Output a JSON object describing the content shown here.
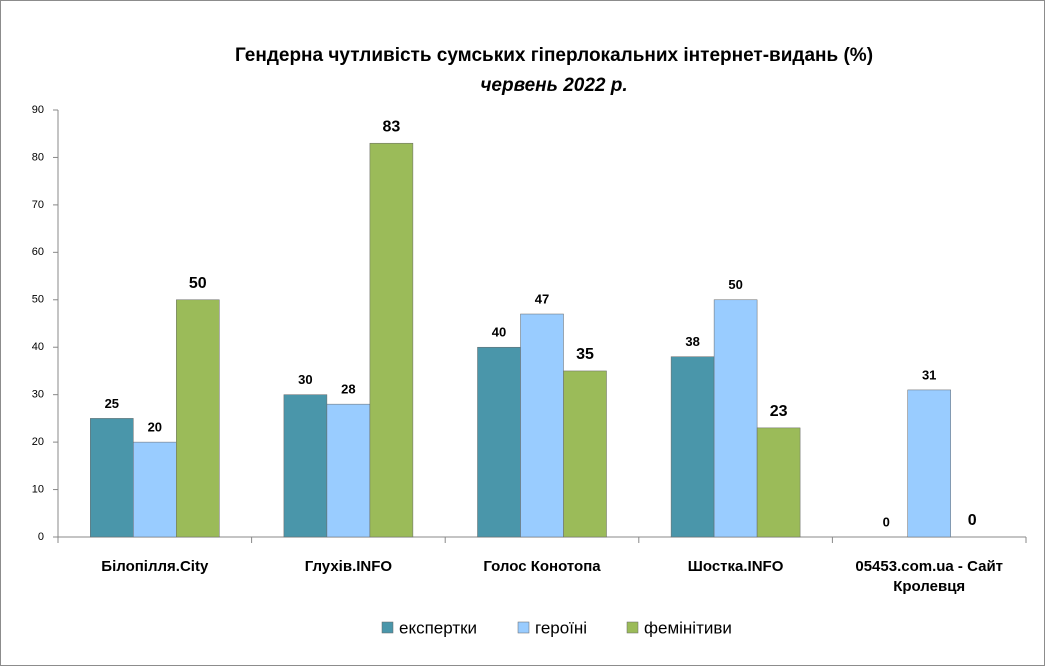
{
  "chart_data": {
    "type": "bar",
    "title": "Гендерна чутливість сумських гіперлокальних інтернет-видань (%)",
    "subtitle": "червень 2022 р.",
    "categories": [
      "Білопілля.City",
      "Глухів.INFO",
      "Голос Конотопа",
      "Шостка.INFO",
      "05453.com.ua - Сайт Кролевця"
    ],
    "series": [
      {
        "name": "експертки",
        "color": "#4a96aa",
        "values": [
          25,
          30,
          40,
          38,
          0
        ]
      },
      {
        "name": "героїні",
        "color": "#99ccff",
        "values": [
          20,
          28,
          47,
          50,
          31
        ]
      },
      {
        "name": "фемінітиви",
        "color": "#9bbb59",
        "values": [
          50,
          83,
          35,
          23,
          0
        ]
      }
    ],
    "ylim": [
      0,
      90
    ],
    "yticks": [
      0,
      10,
      20,
      30,
      40,
      50,
      60,
      70,
      80,
      90
    ],
    "grid": false,
    "legend": "bottom"
  }
}
